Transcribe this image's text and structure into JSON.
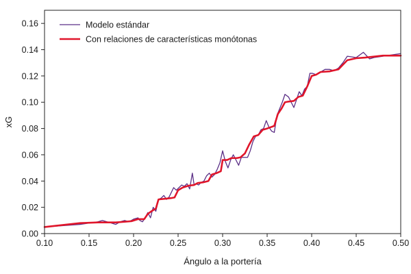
{
  "chart_data": {
    "type": "line",
    "title": "",
    "xlabel": "Ángulo a la portería",
    "ylabel": "xG",
    "xlim": [
      0.1,
      0.5
    ],
    "ylim": [
      0.0,
      0.17
    ],
    "xticks": [
      "0.10",
      "0.15",
      "0.20",
      "0.25",
      "0.30",
      "0.35",
      "0.40",
      "0.45",
      "0.50"
    ],
    "yticks": [
      "0.00",
      "0.02",
      "0.04",
      "0.06",
      "0.08",
      "0.10",
      "0.12",
      "0.14",
      "0.16"
    ],
    "grid": false,
    "legend_position": "top-left",
    "series": [
      {
        "name": "Modelo estándar",
        "color": "#5b2f86",
        "x": [
          0.1,
          0.14,
          0.15,
          0.16,
          0.165,
          0.17,
          0.175,
          0.18,
          0.185,
          0.19,
          0.195,
          0.2,
          0.205,
          0.207,
          0.21,
          0.213,
          0.216,
          0.219,
          0.222,
          0.225,
          0.228,
          0.231,
          0.234,
          0.237,
          0.24,
          0.245,
          0.248,
          0.251,
          0.254,
          0.257,
          0.26,
          0.263,
          0.266,
          0.268,
          0.27,
          0.273,
          0.276,
          0.279,
          0.282,
          0.285,
          0.288,
          0.291,
          0.294,
          0.297,
          0.3,
          0.303,
          0.306,
          0.309,
          0.312,
          0.315,
          0.318,
          0.321,
          0.324,
          0.328,
          0.331,
          0.334,
          0.337,
          0.34,
          0.343,
          0.346,
          0.349,
          0.352,
          0.355,
          0.358,
          0.361,
          0.364,
          0.367,
          0.37,
          0.374,
          0.377,
          0.38,
          0.383,
          0.386,
          0.389,
          0.392,
          0.395,
          0.398,
          0.401,
          0.405,
          0.41,
          0.415,
          0.42,
          0.425,
          0.43,
          0.435,
          0.44,
          0.45,
          0.458,
          0.465,
          0.47,
          0.48,
          0.49,
          0.5
        ],
        "y": [
          0.005,
          0.007,
          0.008,
          0.009,
          0.01,
          0.009,
          0.008,
          0.007,
          0.009,
          0.01,
          0.009,
          0.011,
          0.012,
          0.01,
          0.009,
          0.012,
          0.016,
          0.012,
          0.02,
          0.017,
          0.026,
          0.027,
          0.029,
          0.026,
          0.028,
          0.035,
          0.033,
          0.035,
          0.037,
          0.036,
          0.038,
          0.034,
          0.046,
          0.037,
          0.038,
          0.037,
          0.039,
          0.04,
          0.044,
          0.046,
          0.043,
          0.045,
          0.049,
          0.054,
          0.063,
          0.055,
          0.05,
          0.056,
          0.06,
          0.056,
          0.052,
          0.058,
          0.058,
          0.058,
          0.063,
          0.07,
          0.074,
          0.075,
          0.079,
          0.08,
          0.086,
          0.081,
          0.078,
          0.077,
          0.09,
          0.095,
          0.1,
          0.106,
          0.104,
          0.1,
          0.096,
          0.102,
          0.108,
          0.105,
          0.11,
          0.112,
          0.122,
          0.122,
          0.121,
          0.123,
          0.125,
          0.125,
          0.124,
          0.126,
          0.13,
          0.135,
          0.134,
          0.138,
          0.133,
          0.134,
          0.135,
          0.136,
          0.137
        ],
        "line_width": 1.3
      },
      {
        "name": "Con relaciones de características monótonas",
        "color": "#e0152a",
        "x": [
          0.1,
          0.14,
          0.16,
          0.18,
          0.19,
          0.198,
          0.205,
          0.212,
          0.216,
          0.22,
          0.225,
          0.228,
          0.235,
          0.242,
          0.246,
          0.25,
          0.255,
          0.262,
          0.268,
          0.272,
          0.278,
          0.284,
          0.288,
          0.293,
          0.298,
          0.3,
          0.305,
          0.31,
          0.316,
          0.32,
          0.325,
          0.33,
          0.335,
          0.34,
          0.345,
          0.35,
          0.354,
          0.358,
          0.362,
          0.366,
          0.37,
          0.374,
          0.38,
          0.385,
          0.39,
          0.395,
          0.4,
          0.405,
          0.41,
          0.42,
          0.43,
          0.44,
          0.45,
          0.46,
          0.48,
          0.5
        ],
        "y": [
          0.005,
          0.008,
          0.0085,
          0.0085,
          0.009,
          0.0095,
          0.011,
          0.011,
          0.015,
          0.017,
          0.019,
          0.026,
          0.0265,
          0.027,
          0.0275,
          0.033,
          0.035,
          0.0365,
          0.037,
          0.0385,
          0.039,
          0.04,
          0.045,
          0.046,
          0.0475,
          0.056,
          0.056,
          0.0575,
          0.0575,
          0.058,
          0.061,
          0.068,
          0.074,
          0.075,
          0.079,
          0.08,
          0.081,
          0.082,
          0.091,
          0.095,
          0.1,
          0.1005,
          0.101,
          0.104,
          0.105,
          0.112,
          0.12,
          0.121,
          0.123,
          0.1235,
          0.125,
          0.132,
          0.1335,
          0.134,
          0.1355,
          0.1355
        ],
        "line_width": 2.6
      }
    ]
  }
}
